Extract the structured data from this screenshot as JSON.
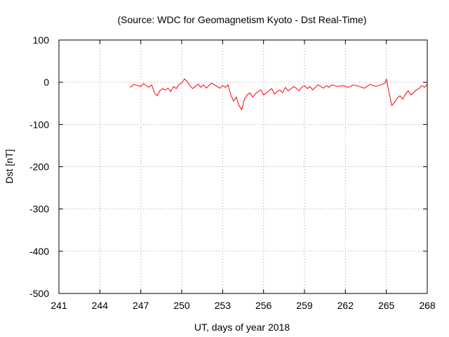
{
  "chart_data": {
    "type": "line",
    "title": "(Source: WDC for Geomagnetism Kyoto - Dst Real-Time)",
    "xlabel": "UT, days of year 2018",
    "ylabel": "Dst [nT]",
    "xlim": [
      241,
      268
    ],
    "ylim": [
      -500,
      100
    ],
    "xticks": [
      241,
      244,
      247,
      250,
      253,
      256,
      259,
      262,
      265,
      268
    ],
    "yticks": [
      100,
      0,
      -100,
      -200,
      -300,
      -400,
      -500
    ],
    "grid": true,
    "series": [
      {
        "color": "#ff0000",
        "x": [
          246.2,
          246.5,
          246.8,
          247.0,
          247.2,
          247.4,
          247.6,
          247.8,
          248.0,
          248.2,
          248.4,
          248.6,
          248.8,
          249.0,
          249.2,
          249.4,
          249.6,
          249.8,
          250.0,
          250.2,
          250.4,
          250.6,
          250.8,
          251.0,
          251.2,
          251.4,
          251.6,
          251.8,
          252.0,
          252.2,
          252.4,
          252.6,
          252.8,
          253.0,
          253.2,
          253.4,
          253.6,
          253.8,
          254.0,
          254.2,
          254.4,
          254.6,
          254.8,
          255.0,
          255.2,
          255.4,
          255.6,
          255.8,
          256.0,
          256.2,
          256.4,
          256.6,
          256.8,
          257.0,
          257.2,
          257.4,
          257.6,
          257.8,
          258.0,
          258.2,
          258.4,
          258.6,
          258.8,
          259.0,
          259.2,
          259.4,
          259.6,
          259.8,
          260.0,
          260.2,
          260.4,
          260.6,
          260.8,
          261.0,
          261.4,
          261.8,
          262.2,
          262.6,
          263.0,
          263.4,
          263.8,
          264.2,
          264.6,
          264.9,
          265.0,
          265.2,
          265.4,
          265.6,
          265.8,
          266.0,
          266.2,
          266.4,
          266.6,
          266.8,
          267.0,
          267.2,
          267.4,
          267.6,
          267.8,
          268.0
        ],
        "y": [
          -12,
          -5,
          -8,
          -10,
          -3,
          -8,
          -12,
          -6,
          -25,
          -32,
          -20,
          -15,
          -18,
          -14,
          -22,
          -10,
          -15,
          -5,
          -2,
          8,
          2,
          -8,
          -15,
          -10,
          -4,
          -12,
          -6,
          -14,
          -8,
          -2,
          -6,
          -10,
          -14,
          -8,
          -12,
          -6,
          -30,
          -45,
          -35,
          -55,
          -65,
          -40,
          -30,
          -25,
          -35,
          -28,
          -22,
          -18,
          -30,
          -25,
          -20,
          -15,
          -28,
          -22,
          -18,
          -25,
          -12,
          -20,
          -16,
          -10,
          -14,
          -20,
          -12,
          -8,
          -15,
          -10,
          -18,
          -12,
          -6,
          -10,
          -14,
          -8,
          -12,
          -6,
          -10,
          -8,
          -12,
          -6,
          -10,
          -14,
          -5,
          -10,
          -6,
          -2,
          8,
          -25,
          -55,
          -48,
          -38,
          -32,
          -40,
          -28,
          -20,
          -30,
          -25,
          -18,
          -15,
          -8,
          -12,
          -5
        ]
      }
    ]
  }
}
